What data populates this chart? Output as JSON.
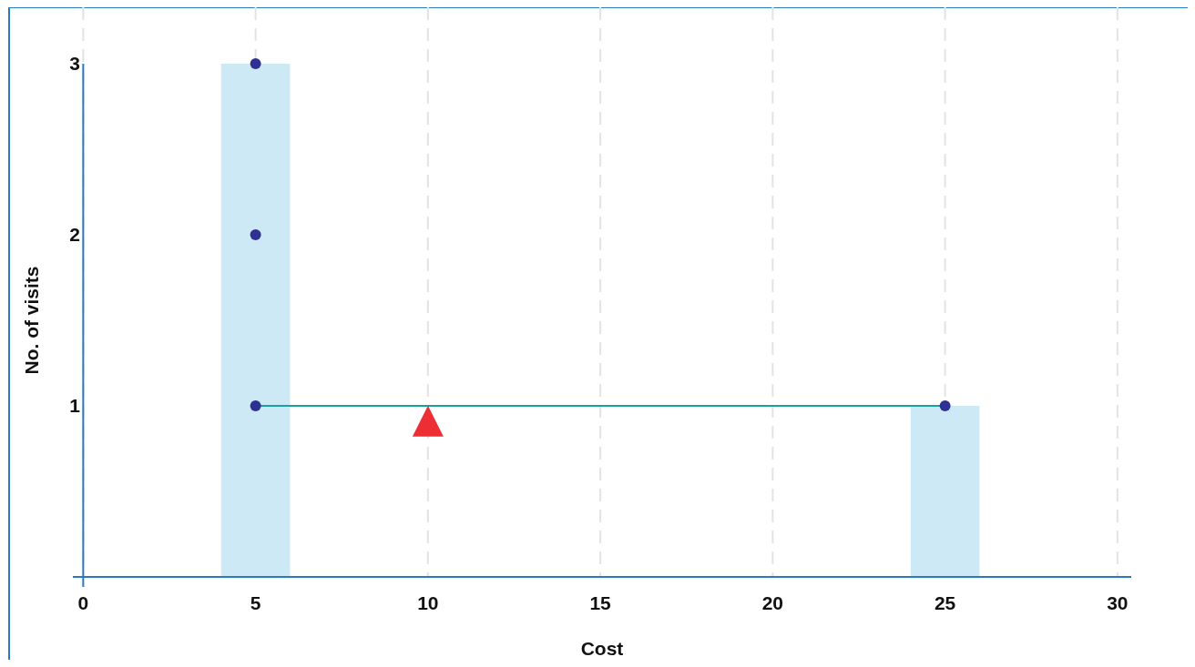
{
  "chart_data": {
    "type": "bar",
    "xlabel": "Cost",
    "ylabel": "No. of visits",
    "x": [
      5,
      25
    ],
    "values": [
      3,
      1
    ],
    "color": "#cde9f6",
    "series": [
      {
        "type": "line",
        "x": [
          5,
          25
        ],
        "values": [
          1,
          1
        ],
        "color": "#17a2a2",
        "marker": "none"
      },
      {
        "type": "scatter",
        "x": [
          5,
          5,
          5,
          25
        ],
        "values": [
          3,
          2,
          1,
          1
        ],
        "color": "#2e3192",
        "marker": "circle"
      },
      {
        "type": "scatter",
        "x": [
          10
        ],
        "values": [
          0.9
        ],
        "color": "#ee2e35",
        "marker": "triangle"
      }
    ],
    "xlim": [
      -0.3,
      30.4
    ],
    "xticks": [
      0,
      5,
      10,
      15,
      20,
      25,
      30
    ],
    "ylim": [
      0,
      3
    ],
    "yticks": [
      1,
      2,
      3
    ],
    "grid": "x"
  }
}
